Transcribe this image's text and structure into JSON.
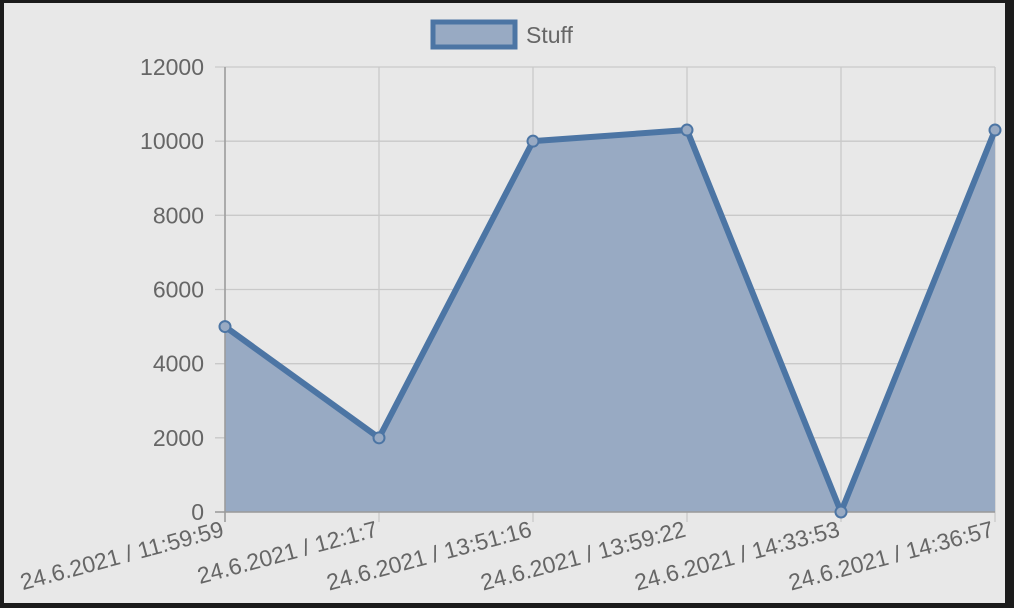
{
  "chart_data": {
    "type": "area",
    "categories": [
      "24.6.2021 / 11:59:59",
      "24.6.2021 / 12:1:7",
      "24.6.2021 / 13:51:16",
      "24.6.2021 / 13:59:22",
      "24.6.2021 / 14:33:53",
      "24.6.2021 / 14:36:57"
    ],
    "series": [
      {
        "name": "Stuff",
        "values": [
          5000,
          2000,
          10000,
          10300,
          0,
          10300
        ]
      }
    ],
    "ylim": [
      0,
      12000
    ],
    "yticks": [
      "0",
      "2000",
      "4000",
      "6000",
      "8000",
      "10000",
      "12000"
    ],
    "grid": true,
    "legend": "top-center",
    "colors": {
      "line": "#4c75a4",
      "fill": "#98aac3",
      "grid": "#c9c9c9",
      "axis": "#9a9a9a",
      "text": "#666666",
      "background": "#e8e8e8"
    }
  }
}
